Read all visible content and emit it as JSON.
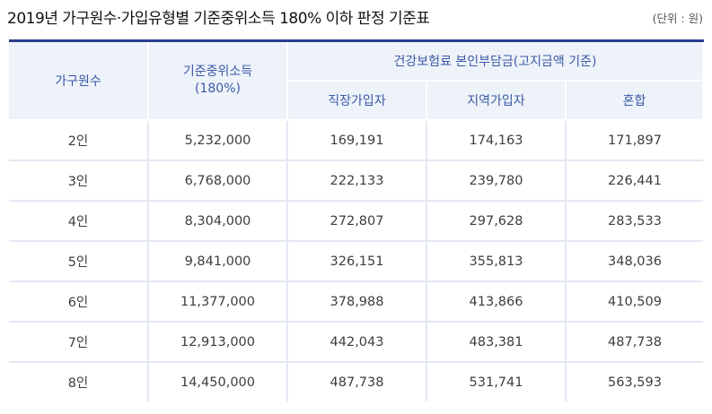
{
  "title": "2019년 가구원수·가입유형별 기준중위소득 180% 이하 판정 기준표",
  "unit": "(단위 : 원)",
  "header": {
    "household": "가구원수",
    "income_line1": "기준중위소득",
    "income_line2": "(180%)",
    "group": "건강보험료 본인부담금(고지금액 기준)",
    "sub": [
      "직장가입자",
      "지역가입자",
      "혼합"
    ]
  },
  "rows": [
    {
      "size": "2인",
      "income": "5,232,000",
      "workplace": "169,191",
      "regional": "174,163",
      "mixed": "171,897"
    },
    {
      "size": "3인",
      "income": "6,768,000",
      "workplace": "222,133",
      "regional": "239,780",
      "mixed": "226,441"
    },
    {
      "size": "4인",
      "income": "8,304,000",
      "workplace": "272,807",
      "regional": "297,628",
      "mixed": "283,533"
    },
    {
      "size": "5인",
      "income": "9,841,000",
      "workplace": "326,151",
      "regional": "355,813",
      "mixed": "348,036"
    },
    {
      "size": "6인",
      "income": "11,377,000",
      "workplace": "378,988",
      "regional": "413,866",
      "mixed": "410,509"
    },
    {
      "size": "7인",
      "income": "12,913,000",
      "workplace": "442,043",
      "regional": "483,381",
      "mixed": "487,738"
    },
    {
      "size": "8인",
      "income": "14,450,000",
      "workplace": "487,738",
      "regional": "531,741",
      "mixed": "563,593"
    }
  ],
  "colors": {
    "header_bg": "#eef2f9",
    "header_text": "#3a5aa6",
    "top_rule": "#2b3e8e",
    "grid": "#e3e8f2"
  }
}
